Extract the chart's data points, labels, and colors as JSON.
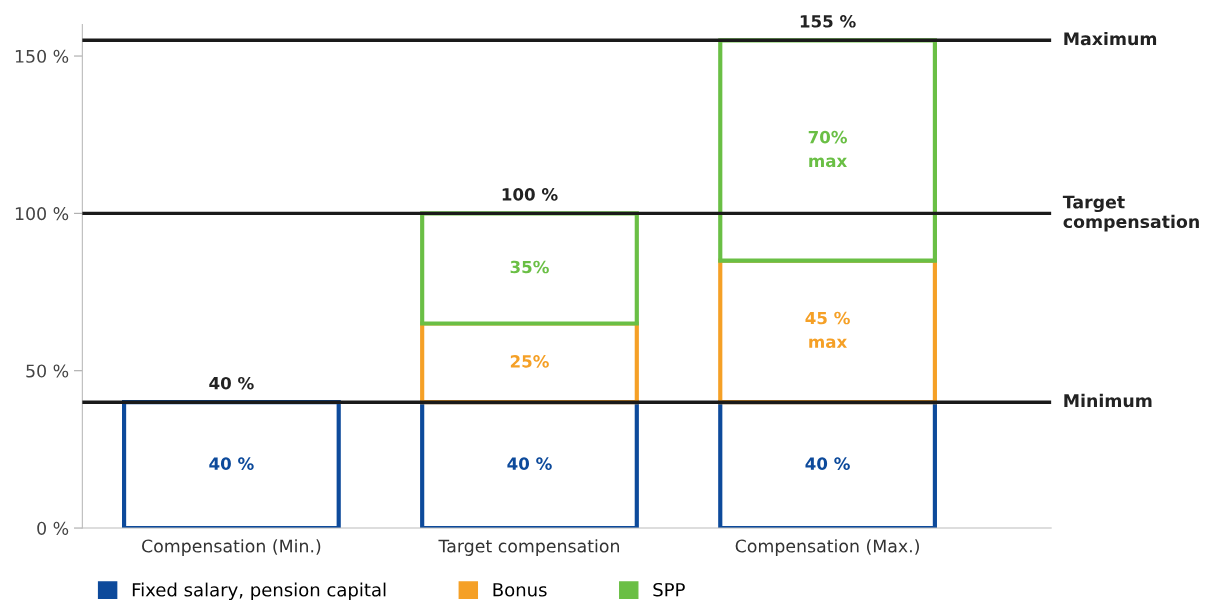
{
  "chart_data": {
    "type": "bar",
    "stacked": true,
    "categories": [
      "Compensation (Min.)",
      "Target compensation",
      "Compensation (Max.)"
    ],
    "series": [
      {
        "name": "Fixed salary, pension capital",
        "color": "#0d4a9b",
        "values": [
          40,
          40,
          40
        ],
        "value_labels": [
          "40 %",
          "40 %",
          "40 %"
        ]
      },
      {
        "name": "Bonus",
        "color": "#f5a026",
        "values": [
          null,
          25,
          45
        ],
        "value_labels": [
          null,
          "25%",
          "45 %\nmax"
        ]
      },
      {
        "name": "SPP",
        "color": "#6abf45",
        "values": [
          null,
          35,
          70
        ],
        "value_labels": [
          null,
          "35%",
          "70%\nmax"
        ]
      }
    ],
    "totals": [
      "40 %",
      "100 %",
      "155 %"
    ],
    "ylim": [
      0,
      160
    ],
    "yticks": [
      {
        "value": 0,
        "label": "0 %"
      },
      {
        "value": 50,
        "label": "50 %"
      },
      {
        "value": 100,
        "label": "100 %"
      },
      {
        "value": 150,
        "label": "150 %"
      }
    ],
    "ref_lines": [
      {
        "axis": "y",
        "value": 40,
        "label": "Minimum",
        "color": "#1a1a1a"
      },
      {
        "axis": "y",
        "value": 100,
        "label": "Target\ncompensation",
        "color": "#1a1a1a"
      },
      {
        "axis": "y",
        "value": 155,
        "label": "Maximum",
        "color": "#1a1a1a"
      }
    ],
    "legend": "bottom",
    "grid": false
  }
}
